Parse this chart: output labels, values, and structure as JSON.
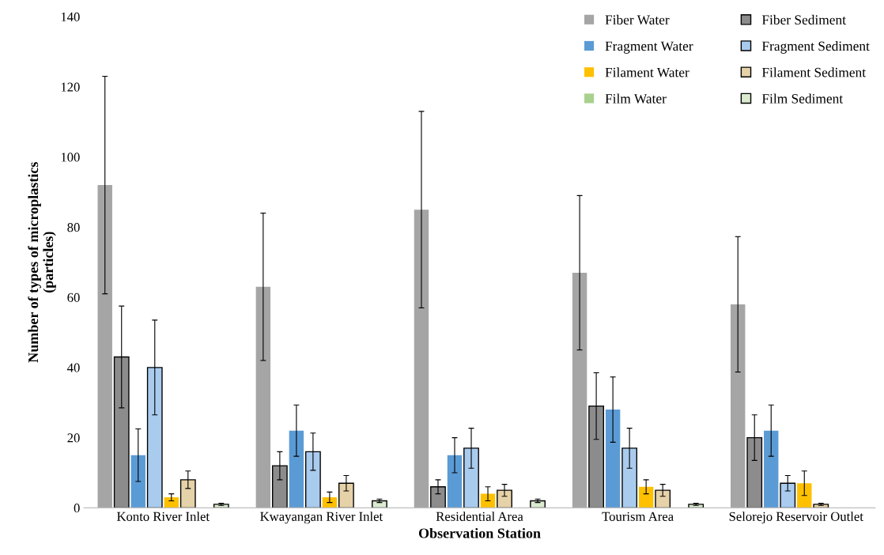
{
  "chart_data": {
    "type": "bar",
    "xlabel": "Observation Station",
    "ylabel": "Number of types of microplastics\n(particles)",
    "categories": [
      "Konto River Inlet",
      "Kwayangan River Inlet",
      "Residential Area",
      "Tourism Area",
      "Selorejo Reservoir Outlet"
    ],
    "ylim": [
      0,
      140
    ],
    "yticks": [
      0,
      20,
      40,
      60,
      80,
      100,
      120,
      140
    ],
    "grid": false,
    "legend": "top right",
    "series": [
      {
        "name": "Fiber Water",
        "color": "#a5a5a5",
        "values": [
          92,
          63,
          85,
          67,
          58
        ],
        "errors": [
          31,
          21,
          28,
          22,
          19.3
        ]
      },
      {
        "name": "Fiber Sediment",
        "color": "#8c8c8c",
        "values": [
          43,
          12,
          6,
          29,
          20
        ],
        "errors": [
          14.5,
          4,
          2,
          9.5,
          6.5
        ]
      },
      {
        "name": "Fragment Water",
        "color": "#5b9bd5",
        "values": [
          15,
          22,
          15,
          28,
          22
        ],
        "errors": [
          7.5,
          7.3,
          5,
          9.3,
          7.3
        ]
      },
      {
        "name": "Fragment Sediment",
        "color": "#a9cbee",
        "values": [
          40,
          16,
          17,
          17,
          7
        ],
        "errors": [
          13.5,
          5.3,
          5.7,
          5.7,
          2.2
        ]
      },
      {
        "name": "Filament Water",
        "color": "#ffc000",
        "values": [
          3,
          3,
          4,
          6,
          7
        ],
        "errors": [
          1,
          1.5,
          2,
          2,
          3.5
        ]
      },
      {
        "name": "Filament Sediment",
        "color": "#e6d2a8",
        "values": [
          8,
          7,
          5,
          5,
          1
        ],
        "errors": [
          2.5,
          2.2,
          1.7,
          1.7,
          0.3
        ]
      },
      {
        "name": "Film Water",
        "color": "#a9d18e",
        "values": [
          null,
          null,
          null,
          null,
          null
        ]
      },
      {
        "name": "Film Sediment",
        "color": "#dcebd0",
        "values": [
          1,
          2,
          2,
          1,
          null
        ],
        "errors": [
          0.3,
          0.5,
          0.5,
          0.3,
          null
        ]
      }
    ]
  }
}
